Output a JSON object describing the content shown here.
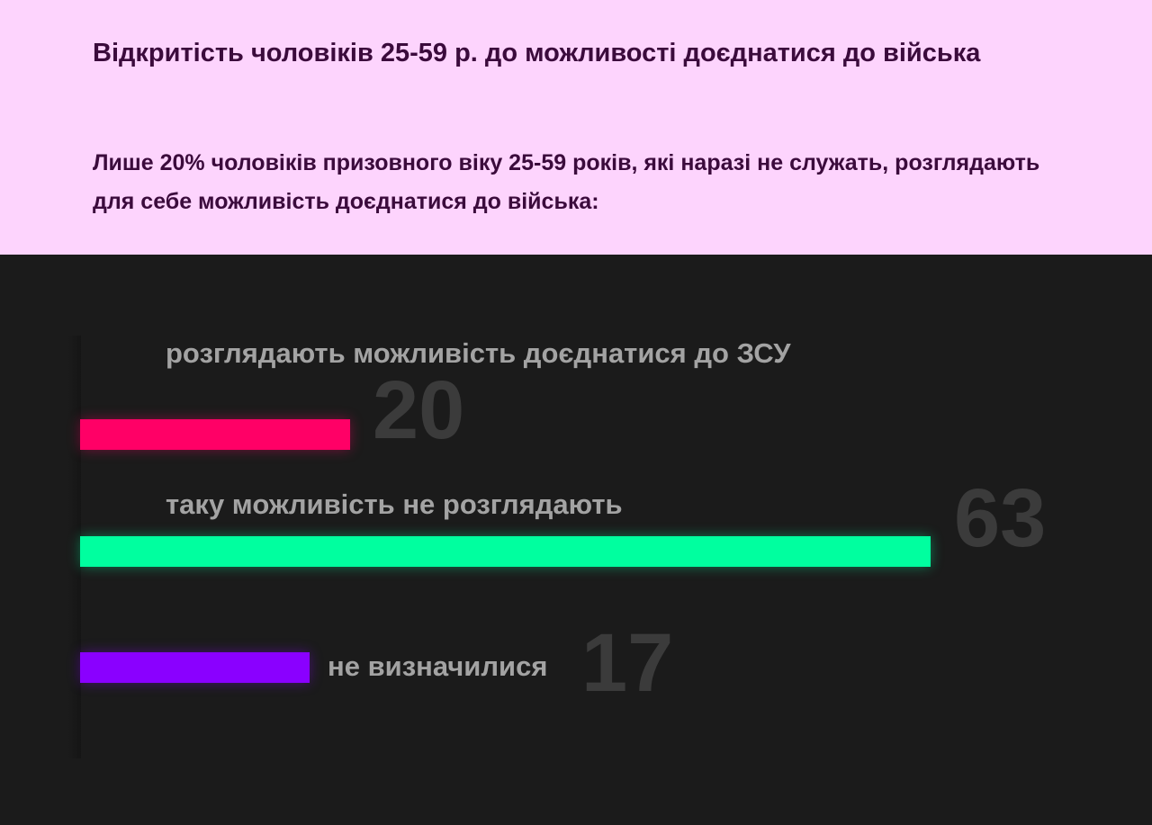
{
  "header": {
    "title": "Відкритість чоловіків 25-59 р. до можливості доєднатися до війська",
    "subtitle": "Лише 20% чоловіків призовного віку 25-59 років, які наразі не служать, розглядають для себе можливість доєднатися до війська:"
  },
  "chart_data": {
    "type": "bar",
    "orientation": "horizontal",
    "categories": [
      "розглядають можливість доєднатися до ЗСУ",
      "таку можливість не розглядають",
      "не визначилися"
    ],
    "values": [
      20,
      63,
      17
    ],
    "value_labels": [
      "20",
      "63",
      "17"
    ],
    "colors": [
      "#ff0066",
      "#00ff9f",
      "#8a00ff"
    ],
    "xlim": [
      0,
      63
    ],
    "grid": false
  }
}
